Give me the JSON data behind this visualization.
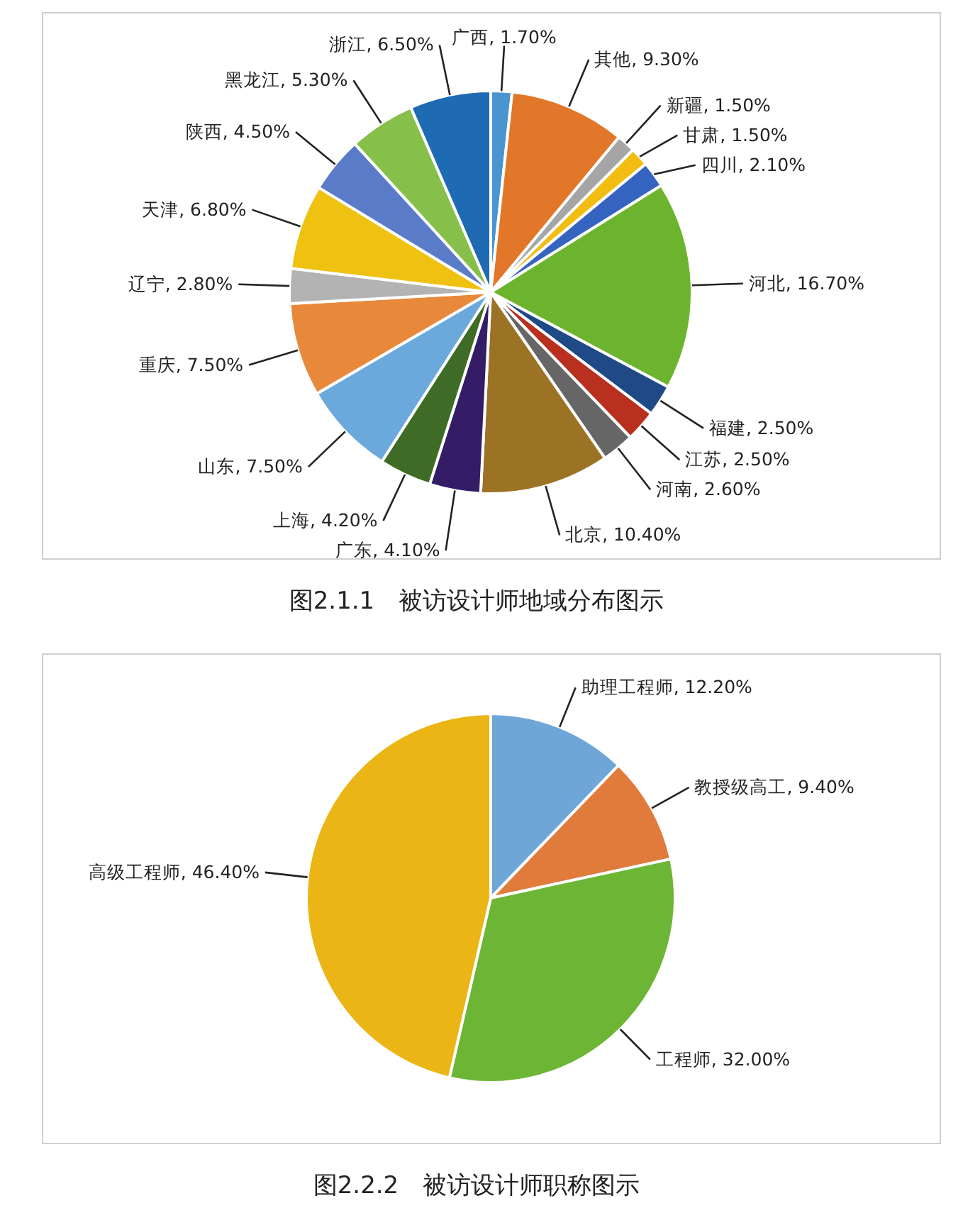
{
  "chart_data": [
    {
      "type": "pie",
      "categories": [
        "广西",
        "其他",
        "新疆",
        "甘肃",
        "四川",
        "河北",
        "福建",
        "江苏",
        "河南",
        "北京",
        "广东",
        "上海",
        "山东",
        "重庆",
        "辽宁",
        "天津",
        "陕西",
        "黑龙江",
        "浙江"
      ],
      "values": [
        1.7,
        9.3,
        1.5,
        1.5,
        2.1,
        16.7,
        2.5,
        2.5,
        2.6,
        10.4,
        4.1,
        4.2,
        7.5,
        7.5,
        2.8,
        6.8,
        4.5,
        5.3,
        6.5
      ],
      "value_labels": [
        "1.70%",
        "9.30%",
        "1.50%",
        "1.50%",
        "2.10%",
        "16.70%",
        "2.50%",
        "2.50%",
        "2.60%",
        "10.40%",
        "4.10%",
        "4.20%",
        "7.50%",
        "7.50%",
        "2.80%",
        "6.80%",
        "4.50%",
        "5.30%",
        "6.50%"
      ],
      "colors": [
        "#4a94d0",
        "#e2772a",
        "#a5a5a5",
        "#f2bc12",
        "#3464c0",
        "#6cb42e",
        "#1f4a85",
        "#b9301f",
        "#666666",
        "#9c7325",
        "#341d66",
        "#3e6b25",
        "#6ba8dc",
        "#e8883a",
        "#b3b3b3",
        "#efc110",
        "#5a7cc8",
        "#86c04a",
        "#1f6bb3"
      ],
      "annotations": [
        "图2.1.1　被访设计师地域分布图示"
      ]
    },
    {
      "type": "pie",
      "categories": [
        "助理工程师",
        "教授级高工",
        "工程师",
        "高级工程师"
      ],
      "values": [
        12.2,
        9.4,
        32.0,
        46.4
      ],
      "value_labels": [
        "12.20%",
        "9.40%",
        "32.00%",
        "46.40%"
      ],
      "colors": [
        "#6ea6d8",
        "#e07b3c",
        "#6db535",
        "#eab515"
      ],
      "annotations": [
        "图2.2.2　被访设计师职称图示"
      ]
    }
  ]
}
